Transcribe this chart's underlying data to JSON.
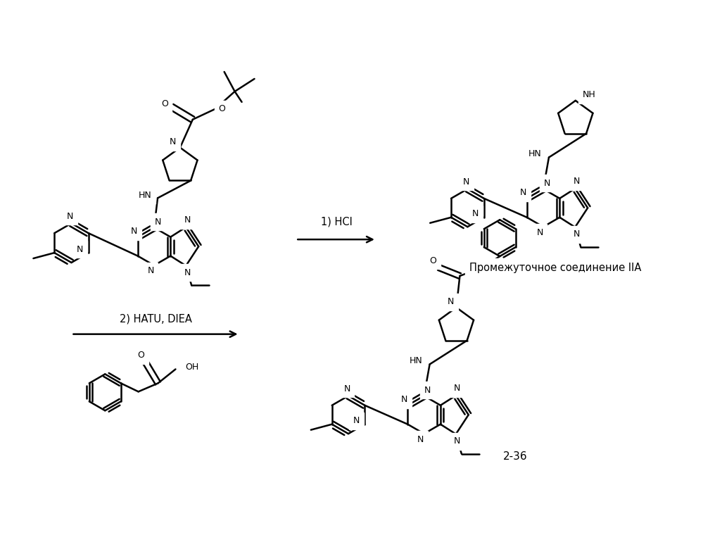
{
  "background_color": "#ffffff",
  "label_IIA": "Промежуточное соединение IIA",
  "label_236": "2-36",
  "label_hcl": "1) HCl",
  "label_hatu": "2) HATU, DIEA"
}
